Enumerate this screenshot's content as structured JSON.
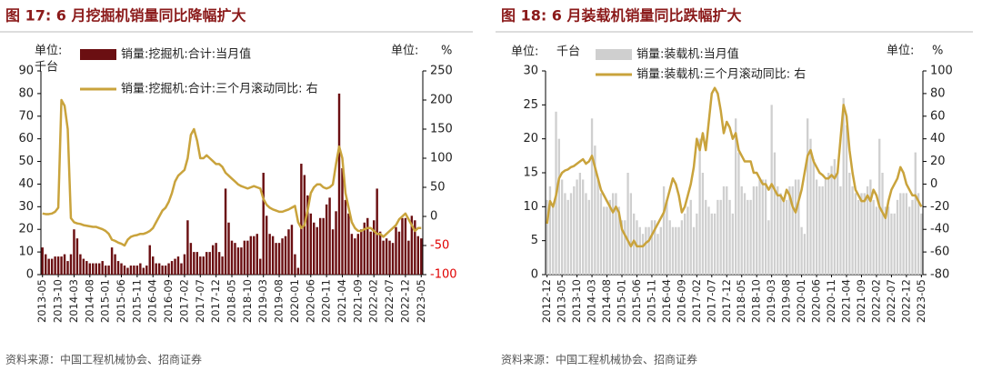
{
  "chart_data": [
    {
      "type": "bar_line",
      "title": "图 17:  6 月挖掘机销量同比降幅扩大",
      "y_label_lines": [
        "单位:",
        "千台"
      ],
      "y2_label_parts": [
        "单位:",
        "%"
      ],
      "source": "资料来源：中国工程机械协会、招商证券",
      "categories": [
        "2013-05",
        null,
        null,
        null,
        null,
        "2013-10",
        null,
        null,
        null,
        null,
        "2014-03",
        null,
        null,
        null,
        null,
        "2014-08",
        null,
        null,
        null,
        null,
        "2015-01",
        null,
        null,
        null,
        null,
        "2015-06",
        null,
        null,
        null,
        null,
        "2015-11",
        null,
        null,
        null,
        null,
        "2016-04",
        null,
        null,
        null,
        null,
        "2016-09",
        null,
        null,
        null,
        null,
        "2017-02",
        null,
        null,
        null,
        null,
        "2017-07",
        null,
        null,
        null,
        null,
        "2017-12",
        null,
        null,
        null,
        null,
        "2018-05",
        null,
        null,
        null,
        null,
        "2018-10",
        null,
        null,
        null,
        null,
        "2019-03",
        null,
        null,
        null,
        null,
        "2019-08",
        null,
        null,
        null,
        null,
        "2020-01",
        null,
        null,
        null,
        null,
        "2020-06",
        null,
        null,
        null,
        null,
        "2020-11",
        null,
        null,
        null,
        null,
        "2021-04",
        null,
        null,
        null,
        null,
        "2021-09",
        null,
        null,
        null,
        null,
        "2022-02",
        null,
        null,
        null,
        null,
        "2022-07",
        null,
        null,
        null,
        null,
        "2022-12",
        null,
        null,
        null,
        null,
        "2023-05"
      ],
      "series": [
        {
          "name": "销量:挖掘机:合计:当月值",
          "type": "bar",
          "color": "#6b0f12",
          "values": [
            12,
            9,
            7,
            7,
            8,
            8,
            8,
            9,
            6,
            9,
            20,
            16,
            9,
            7,
            6,
            5,
            5,
            5,
            5,
            6,
            4,
            4,
            12,
            9,
            6,
            5,
            4,
            3,
            4,
            4,
            4,
            5,
            3,
            4,
            13,
            8,
            5,
            5,
            4,
            4,
            5,
            6,
            7,
            8,
            5,
            9,
            24,
            14,
            10,
            10,
            8,
            8,
            10,
            10,
            13,
            14,
            10,
            8,
            38,
            23,
            15,
            14,
            12,
            12,
            15,
            15,
            17,
            17,
            18,
            7,
            45,
            26,
            18,
            17,
            14,
            14,
            16,
            17,
            20,
            22,
            9,
            3,
            49,
            44,
            35,
            27,
            23,
            21,
            25,
            25,
            31,
            34,
            20,
            28,
            80,
            47,
            33,
            27,
            18,
            16,
            18,
            20,
            23,
            25,
            19,
            24,
            38,
            19,
            15,
            16,
            15,
            14,
            21,
            19,
            25,
            25,
            15,
            26,
            24,
            17,
            16
          ]
        },
        {
          "name": "销量:挖掘机:合计:三个月滚动同比:  右",
          "type": "line",
          "axis": "y2",
          "color": "#c9a33c",
          "values": [
            5,
            4,
            4,
            5,
            8,
            15,
            200,
            190,
            150,
            -3,
            -10,
            -12,
            -13,
            -15,
            -16,
            -17,
            -18,
            -18,
            -20,
            -22,
            -25,
            -30,
            -40,
            -42,
            -45,
            -47,
            -50,
            -40,
            -35,
            -33,
            -32,
            -30,
            -30,
            -28,
            -25,
            -20,
            -10,
            0,
            10,
            15,
            25,
            40,
            60,
            70,
            75,
            80,
            100,
            140,
            150,
            130,
            100,
            100,
            105,
            100,
            95,
            90,
            90,
            85,
            75,
            70,
            65,
            60,
            55,
            52,
            50,
            48,
            50,
            52,
            50,
            48,
            30,
            20,
            15,
            12,
            10,
            8,
            8,
            10,
            12,
            15,
            18,
            -10,
            -20,
            -15,
            10,
            40,
            50,
            55,
            55,
            50,
            48,
            50,
            55,
            90,
            120,
            100,
            40,
            15,
            -10,
            -20,
            -25,
            -25,
            -22,
            -20,
            -20,
            -25,
            -30,
            -30,
            -35,
            -30,
            -25,
            -20,
            -15,
            -5,
            0,
            5,
            -5,
            -15,
            -25,
            -20,
            -20
          ]
        }
      ],
      "ylim": [
        0,
        90
      ],
      "yticks": [
        0,
        10,
        20,
        30,
        40,
        50,
        60,
        70,
        80,
        90
      ],
      "y2lim": [
        -100,
        250
      ],
      "y2ticks": [
        -100,
        -50,
        0,
        50,
        100,
        150,
        200,
        250
      ],
      "y2_negative_color": "#e00000"
    },
    {
      "type": "bar_line",
      "title": "图 18:  6 月装载机销量同比跌幅扩大",
      "y_label_lines": [
        "单位:",
        "千台"
      ],
      "y2_label_parts": [
        "单位:",
        "%"
      ],
      "source": "资料来源：中国工程机械协会、招商证券",
      "categories": [
        "2012-12",
        null,
        null,
        null,
        null,
        "2013-05",
        null,
        null,
        null,
        null,
        "2013-10",
        null,
        null,
        null,
        null,
        "2014-03",
        null,
        null,
        null,
        null,
        "2014-08",
        null,
        null,
        null,
        null,
        "2015-01",
        null,
        null,
        null,
        null,
        "2015-06",
        null,
        null,
        null,
        null,
        "2015-11",
        null,
        null,
        null,
        null,
        "2016-04",
        null,
        null,
        null,
        null,
        "2016-09",
        null,
        null,
        null,
        null,
        "2017-02",
        null,
        null,
        null,
        null,
        "2017-07",
        null,
        null,
        null,
        null,
        "2017-12",
        null,
        null,
        null,
        null,
        "2018-05",
        null,
        null,
        null,
        null,
        "2018-10",
        null,
        null,
        null,
        null,
        "2019-03",
        null,
        null,
        null,
        null,
        "2019-08",
        null,
        null,
        null,
        null,
        "2020-01",
        null,
        null,
        null,
        null,
        "2020-06",
        null,
        null,
        null,
        null,
        "2020-11",
        null,
        null,
        null,
        null,
        "2021-04",
        null,
        null,
        null,
        null,
        "2021-09",
        null,
        null,
        null,
        null,
        "2022-02",
        null,
        null,
        null,
        null,
        "2022-07",
        null,
        null,
        null,
        null,
        "2022-12",
        null,
        null,
        null,
        null,
        "2023-05"
      ],
      "series": [
        {
          "name": "销量:装载机:当月值",
          "type": "bar",
          "color": "#cfcfcf",
          "values": [
            11,
            13,
            10,
            24,
            20,
            14,
            12,
            11,
            12,
            13,
            14,
            15,
            14,
            12,
            11,
            23,
            19,
            14,
            12,
            10,
            10,
            11,
            12,
            12,
            10,
            8,
            8,
            15,
            12,
            9,
            8,
            7,
            6,
            7,
            7,
            8,
            8,
            6,
            7,
            13,
            11,
            8,
            7,
            7,
            7,
            8,
            9,
            10,
            11,
            7,
            9,
            20,
            15,
            11,
            10,
            9,
            9,
            11,
            11,
            13,
            13,
            11,
            9,
            23,
            18,
            13,
            12,
            11,
            11,
            13,
            13,
            14,
            14,
            14,
            8,
            25,
            18,
            13,
            12,
            11,
            11,
            13,
            13,
            14,
            14,
            7,
            6,
            23,
            20,
            17,
            14,
            13,
            13,
            14,
            15,
            16,
            17,
            15,
            13,
            26,
            22,
            15,
            13,
            12,
            11,
            12,
            12,
            13,
            14,
            11,
            10,
            20,
            15,
            10,
            10,
            9,
            9,
            11,
            12,
            12,
            12,
            10,
            11,
            18,
            12,
            9
          ]
        },
        {
          "name": "销量:装载机:三个月滚动同比:  右",
          "type": "line",
          "axis": "y2",
          "color": "#c9a33c",
          "values": [
            -35,
            -15,
            -20,
            -10,
            5,
            10,
            12,
            13,
            15,
            16,
            18,
            20,
            22,
            18,
            20,
            25,
            15,
            5,
            -5,
            -10,
            -15,
            -20,
            -25,
            -20,
            -25,
            -40,
            -45,
            -50,
            -55,
            -50,
            -55,
            -55,
            -55,
            -52,
            -50,
            -45,
            -40,
            -35,
            -30,
            -25,
            -15,
            -5,
            5,
            0,
            -10,
            -25,
            -20,
            -10,
            0,
            15,
            40,
            30,
            45,
            30,
            55,
            80,
            85,
            80,
            65,
            45,
            55,
            50,
            40,
            45,
            30,
            25,
            20,
            20,
            20,
            10,
            10,
            5,
            0,
            0,
            -5,
            0,
            -5,
            -10,
            -10,
            -15,
            -5,
            -10,
            -20,
            -25,
            -15,
            -5,
            10,
            25,
            30,
            20,
            15,
            10,
            8,
            5,
            5,
            8,
            5,
            10,
            40,
            70,
            60,
            30,
            10,
            -5,
            -10,
            -15,
            -15,
            -10,
            -15,
            -5,
            -10,
            -20,
            -25,
            -30,
            -15,
            -5,
            0,
            5,
            15,
            10,
            0,
            -5,
            -10,
            -10,
            -15,
            -20
          ]
        }
      ],
      "ylim": [
        0,
        30
      ],
      "yticks": [
        0,
        5,
        10,
        15,
        20,
        25,
        30
      ],
      "y2lim": [
        -80,
        100
      ],
      "y2ticks": [
        -80,
        -60,
        -40,
        -20,
        0,
        20,
        40,
        60,
        80,
        100
      ]
    }
  ]
}
